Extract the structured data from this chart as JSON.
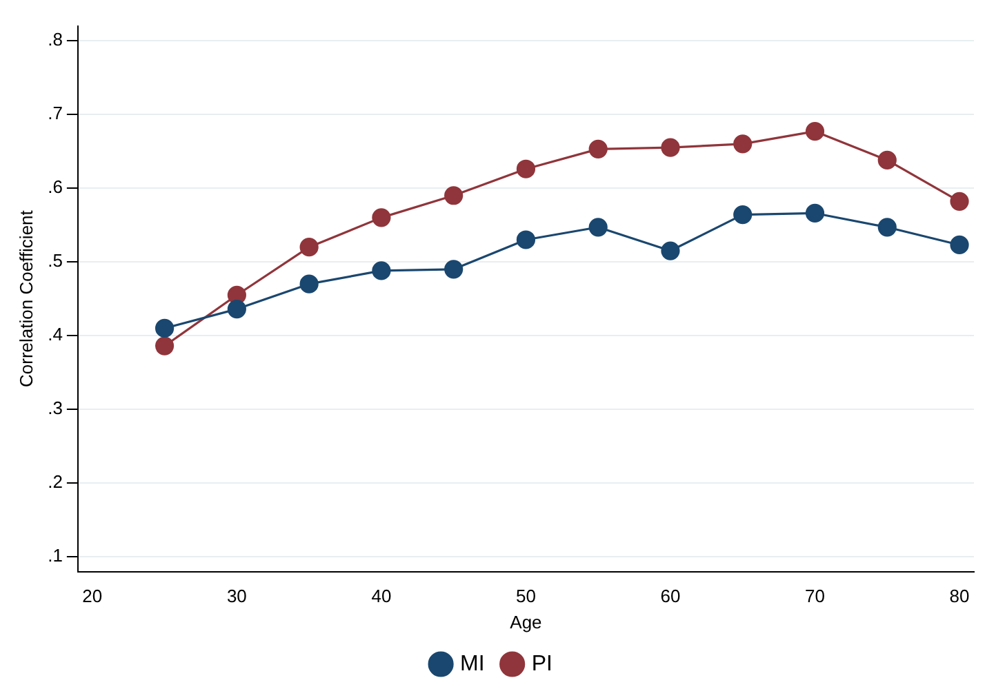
{
  "chart_data": {
    "type": "line",
    "xlabel": "Age",
    "ylabel": "Correlation Coefficient",
    "x": [
      25,
      30,
      35,
      40,
      45,
      50,
      55,
      60,
      65,
      70,
      75,
      80
    ],
    "series": [
      {
        "name": "MI",
        "color": "#1a476f",
        "values": [
          0.41,
          0.436,
          0.47,
          0.488,
          0.49,
          0.53,
          0.547,
          0.515,
          0.564,
          0.566,
          0.547,
          0.523
        ]
      },
      {
        "name": "PI",
        "color": "#90353b",
        "values": [
          0.386,
          0.455,
          0.52,
          0.56,
          0.59,
          0.626,
          0.653,
          0.655,
          0.66,
          0.677,
          0.638,
          0.582
        ]
      }
    ],
    "xlim": [
      19,
      81
    ],
    "xticks": [
      20,
      30,
      40,
      50,
      60,
      70,
      80
    ],
    "ylim": [
      0.08,
      0.82
    ],
    "yticks": [
      {
        "value": 0.1,
        "label": ".1"
      },
      {
        "value": 0.2,
        "label": ".2"
      },
      {
        "value": 0.3,
        "label": ".3"
      },
      {
        "value": 0.4,
        "label": ".4"
      },
      {
        "value": 0.5,
        "label": ".5"
      },
      {
        "value": 0.6,
        "label": ".6"
      },
      {
        "value": 0.7,
        "label": ".7"
      },
      {
        "value": 0.8,
        "label": ".8"
      }
    ],
    "grid": "y",
    "legend": "bottom",
    "marker": "circle",
    "line_style": "solid"
  }
}
